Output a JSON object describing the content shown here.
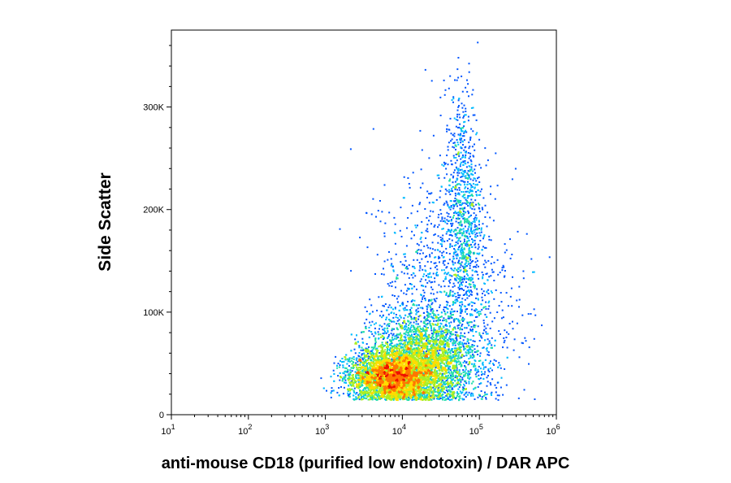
{
  "chart_data": {
    "type": "scatter",
    "title": "",
    "xlabel": "anti-mouse CD18 (purified low endotoxin) / DAR APC",
    "ylabel": "Side Scatter",
    "x_scale": "log",
    "xlim": [
      10,
      1000000
    ],
    "ylim": [
      0,
      375000
    ],
    "x_ticks": [
      {
        "value": 10,
        "base": "10",
        "exp": "1"
      },
      {
        "value": 100,
        "base": "10",
        "exp": "2"
      },
      {
        "value": 1000,
        "base": "10",
        "exp": "3"
      },
      {
        "value": 10000,
        "base": "10",
        "exp": "4"
      },
      {
        "value": 100000,
        "base": "10",
        "exp": "5"
      },
      {
        "value": 1000000,
        "base": "10",
        "exp": "6"
      }
    ],
    "y_ticks": [
      {
        "value": 0,
        "label": "0"
      },
      {
        "value": 100000,
        "label": "100K"
      },
      {
        "value": 200000,
        "label": "200K"
      },
      {
        "value": 300000,
        "label": "300K"
      }
    ],
    "grid": false,
    "legend": "none",
    "colormap": [
      "#0000cc",
      "#0055ff",
      "#00bbff",
      "#22ddaa",
      "#aaee22",
      "#ffdd00",
      "#ff7700",
      "#ee1100"
    ],
    "populations": [
      {
        "x_center": 7000,
        "y_center": 38000,
        "x_spread_log10": 0.28,
        "y_spread": 12000,
        "count": 5000
      },
      {
        "x_center": 18000,
        "y_center": 55000,
        "x_spread_log10": 0.35,
        "y_spread": 22000,
        "count": 3500
      },
      {
        "x_center": 60000,
        "y_center": 200000,
        "x_spread_log10": 0.12,
        "y_spread": 60000,
        "count": 900
      },
      {
        "x_center": 35000,
        "y_center": 110000,
        "x_spread_log10": 0.45,
        "y_spread": 60000,
        "count": 1200
      }
    ]
  }
}
